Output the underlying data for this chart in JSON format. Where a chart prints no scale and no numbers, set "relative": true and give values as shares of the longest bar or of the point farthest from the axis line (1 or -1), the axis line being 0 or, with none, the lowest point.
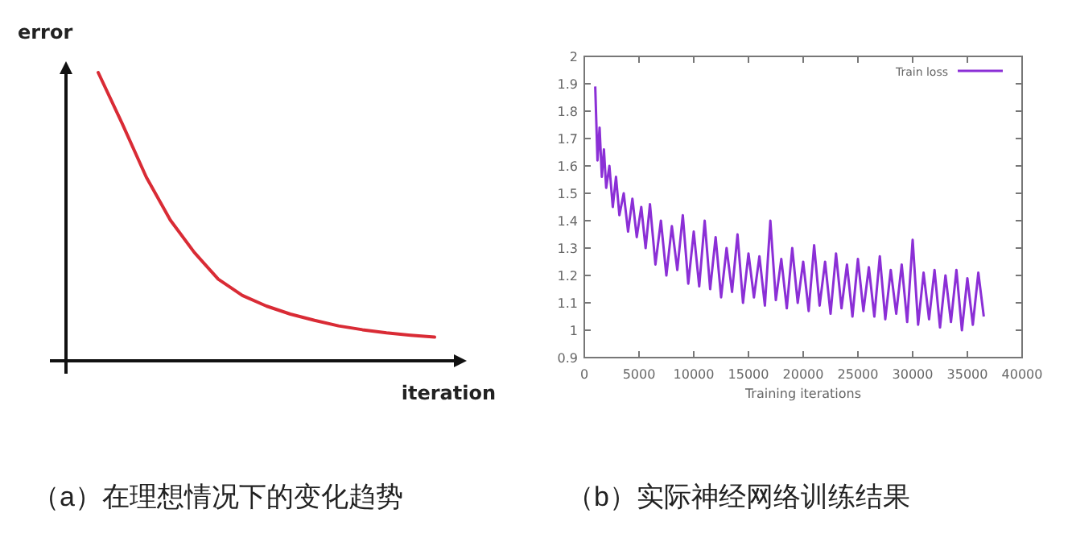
{
  "chart_data": [
    {
      "type": "line",
      "relative": true,
      "xlabel": "iteration",
      "ylabel": "error",
      "color": "#d92b35",
      "categories": [
        null,
        null,
        null,
        null,
        null,
        null,
        null,
        null,
        null,
        null,
        null,
        null,
        null,
        null,
        null
      ],
      "values": [
        1,
        0.823,
        0.637,
        0.488,
        0.376,
        0.283,
        0.227,
        0.19,
        0.162,
        0.14,
        0.121,
        0.108,
        0.097,
        0.089,
        0.082
      ],
      "annotations": [
        "（a）在理想情况下的变化趋势"
      ]
    },
    {
      "type": "line",
      "xlabel": "Training iterations",
      "legend": "top right",
      "x": [
        1000,
        1200,
        1400,
        1600,
        1800,
        2000,
        2300,
        2600,
        2900,
        3200,
        3600,
        4000,
        4400,
        4800,
        5200,
        5600,
        6000,
        6500,
        7000,
        7500,
        8000,
        8500,
        9000,
        9500,
        10000,
        10500,
        11000,
        11500,
        12000,
        12500,
        13000,
        13500,
        14000,
        14500,
        15000,
        15500,
        16000,
        16500,
        17000,
        17500,
        18000,
        18500,
        19000,
        19500,
        20000,
        20500,
        21000,
        21500,
        22000,
        22500,
        23000,
        23500,
        24000,
        24500,
        25000,
        25500,
        26000,
        26500,
        27000,
        27500,
        28000,
        28500,
        29000,
        29500,
        30000,
        30500,
        31000,
        31500,
        32000,
        32500,
        33000,
        33500,
        34000,
        34500,
        35000,
        35500,
        36000,
        36500
      ],
      "series": [
        {
          "name": "Train loss",
          "color": "#8b2fd6",
          "values": [
            1.89,
            1.62,
            1.74,
            1.56,
            1.66,
            1.52,
            1.6,
            1.45,
            1.56,
            1.42,
            1.5,
            1.36,
            1.48,
            1.34,
            1.45,
            1.3,
            1.46,
            1.24,
            1.4,
            1.2,
            1.38,
            1.22,
            1.42,
            1.17,
            1.36,
            1.16,
            1.4,
            1.15,
            1.34,
            1.12,
            1.3,
            1.14,
            1.35,
            1.1,
            1.28,
            1.12,
            1.27,
            1.09,
            1.4,
            1.11,
            1.26,
            1.08,
            1.3,
            1.1,
            1.25,
            1.07,
            1.31,
            1.09,
            1.25,
            1.06,
            1.28,
            1.08,
            1.24,
            1.05,
            1.26,
            1.07,
            1.23,
            1.05,
            1.27,
            1.04,
            1.22,
            1.06,
            1.24,
            1.03,
            1.33,
            1.02,
            1.21,
            1.04,
            1.22,
            1.01,
            1.2,
            1.03,
            1.22,
            1.0,
            1.19,
            1.02,
            1.21,
            1.05
          ]
        }
      ],
      "xlim": [
        0,
        40000
      ],
      "ylim": [
        0.9,
        2
      ],
      "xticks": [
        0,
        5000,
        10000,
        15000,
        20000,
        25000,
        30000,
        35000,
        40000
      ],
      "yticks": [
        0.9,
        1,
        1.1,
        1.2,
        1.3,
        1.4,
        1.5,
        1.6,
        1.7,
        1.8,
        1.9,
        2
      ],
      "annotations": [
        "（b）实际神经网络训练结果"
      ]
    }
  ]
}
